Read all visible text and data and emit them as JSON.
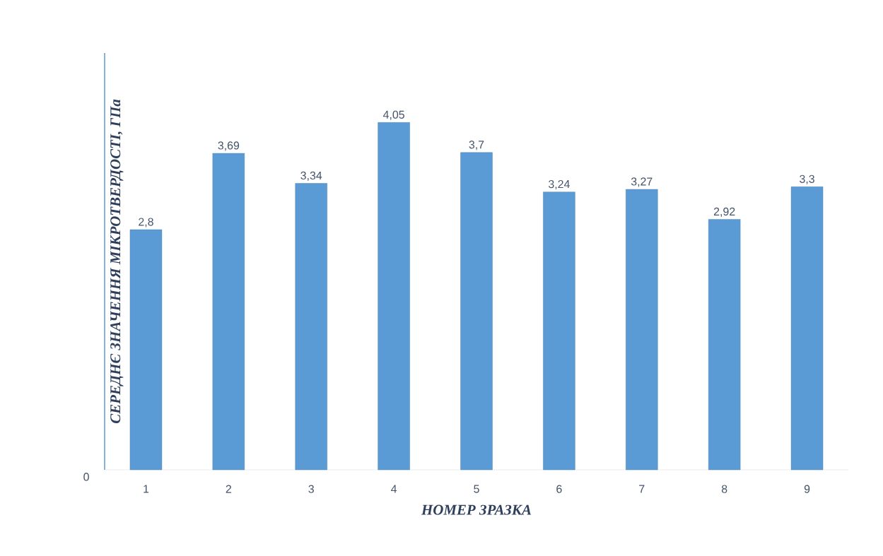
{
  "chart_data": {
    "type": "bar",
    "xlabel": "НОМЕР ЗРАЗКА",
    "ylabel": "СЕРЕДНЄ ЗНАЧЕННЯ МІКРОТВЕРДОСТІ, ГПа",
    "categories": [
      "1",
      "2",
      "3",
      "4",
      "5",
      "6",
      "7",
      "8",
      "9"
    ],
    "values": [
      2.8,
      3.69,
      3.34,
      4.05,
      3.7,
      3.24,
      3.27,
      2.92,
      3.3
    ],
    "value_labels": [
      "2,8",
      "3,69",
      "3,34",
      "4,05",
      "3,7",
      "3,24",
      "3,27",
      "2,92",
      "3,3"
    ],
    "color": "#5b9bd5",
    "annotations": [
      "0"
    ]
  }
}
